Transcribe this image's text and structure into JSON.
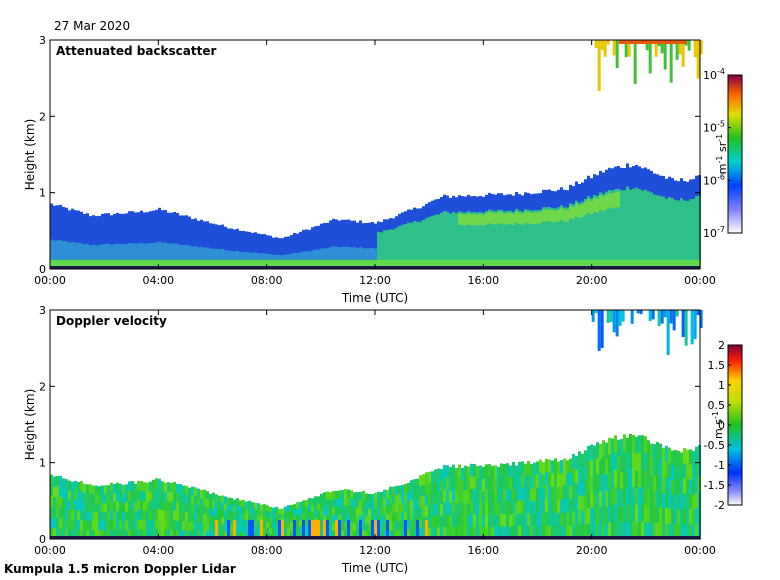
{
  "header": {
    "date": "27 Mar 2020"
  },
  "footer": {
    "text": "Kumpula 1.5 micron Doppler Lidar"
  },
  "chart_data": [
    {
      "type": "heatmap",
      "title": "Attenuated backscatter",
      "xlabel": "Time (UTC)",
      "ylabel": "Height (km)",
      "x_ticks": [
        "00:00",
        "04:00",
        "08:00",
        "12:00",
        "16:00",
        "20:00",
        "00:00"
      ],
      "x_range_hours": [
        0,
        24
      ],
      "y_ticks": [
        "0",
        "1",
        "2",
        "3"
      ],
      "ylim": [
        0,
        3
      ],
      "colorbar": {
        "label": "m-1 sr-1",
        "scale": "log",
        "range": [
          1e-07,
          0.0001
        ],
        "ticks": [
          {
            "base": "10",
            "exp": "-4"
          },
          {
            "base": "10",
            "exp": "-5"
          },
          {
            "base": "10",
            "exp": "-6"
          },
          {
            "base": "10",
            "exp": "-7"
          }
        ]
      },
      "boundary_layer_top_km": [
        {
          "t": 0,
          "h": 0.85
        },
        {
          "t": 1.5,
          "h": 0.7
        },
        {
          "t": 3.3,
          "h": 0.75
        },
        {
          "t": 4.0,
          "h": 0.78
        },
        {
          "t": 6.5,
          "h": 0.55
        },
        {
          "t": 8.5,
          "h": 0.4
        },
        {
          "t": 10.5,
          "h": 0.65
        },
        {
          "t": 12.0,
          "h": 0.6
        },
        {
          "t": 13.5,
          "h": 0.8
        },
        {
          "t": 14.5,
          "h": 0.95
        },
        {
          "t": 17.0,
          "h": 0.98
        },
        {
          "t": 19.0,
          "h": 1.05
        },
        {
          "t": 20.5,
          "h": 1.3
        },
        {
          "t": 21.5,
          "h": 1.38
        },
        {
          "t": 23.0,
          "h": 1.15
        },
        {
          "t": 24.0,
          "h": 1.2
        }
      ],
      "upper_cloud": {
        "t_start": 20.0,
        "t_end": 24.0,
        "base_km": 2.3,
        "top_km": 3.0
      }
    },
    {
      "type": "heatmap",
      "title": "Doppler velocity",
      "xlabel": "Time (UTC)",
      "ylabel": "Height (km)",
      "x_ticks": [
        "00:00",
        "04:00",
        "08:00",
        "12:00",
        "16:00",
        "20:00",
        "00:00"
      ],
      "x_range_hours": [
        0,
        24
      ],
      "y_ticks": [
        "0",
        "1",
        "2",
        "3"
      ],
      "ylim": [
        0,
        3
      ],
      "colorbar": {
        "label": "m s-1",
        "scale": "linear",
        "range": [
          -2,
          2
        ],
        "ticks": [
          "2",
          "1.5",
          "1",
          "0.5",
          "0",
          "-0.5",
          "-1",
          "-1.5",
          "-2"
        ]
      },
      "upper_cloud": {
        "t_start": 20.0,
        "t_end": 24.0,
        "base_km": 2.4,
        "top_km": 3.0
      }
    }
  ]
}
